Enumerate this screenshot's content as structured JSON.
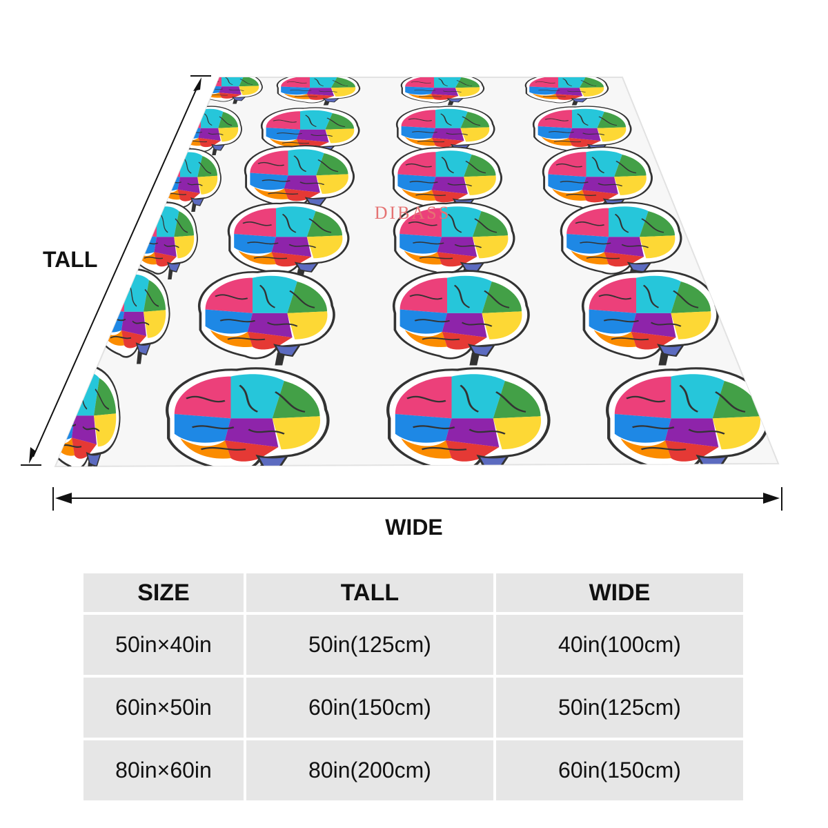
{
  "watermark": "DIBASS",
  "dimensions": {
    "tall_label": "TALL",
    "wide_label": "WIDE"
  },
  "size_table": {
    "headers": [
      "SIZE",
      "TALL",
      "WIDE"
    ],
    "rows": [
      [
        "50in×40in",
        "50in(125cm)",
        "40in(100cm)"
      ],
      [
        "60in×50in",
        "60in(150cm)",
        "50in(125cm)"
      ],
      [
        "80in×60in",
        "80in(200cm)",
        "60in(150cm)"
      ]
    ]
  },
  "colors": {
    "brain_palette": [
      "#e53935",
      "#fb8c00",
      "#fdd835",
      "#43a047",
      "#1e88e5",
      "#8e24aa",
      "#26c6da",
      "#ec407a",
      "#7cb342",
      "#5c6bc0"
    ],
    "watermark": "#e57373",
    "table_bg": "#e6e6e6"
  },
  "icons": [
    "brain-illustration",
    "tall-dimension-arrow",
    "wide-dimension-arrow"
  ]
}
